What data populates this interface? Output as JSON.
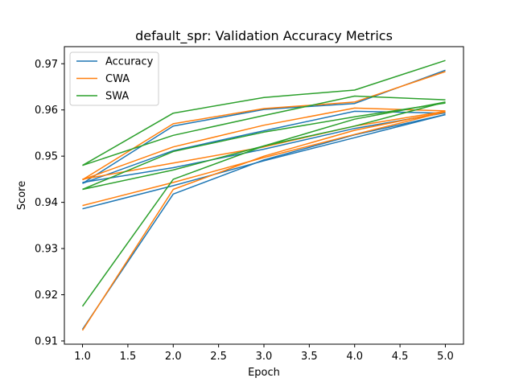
{
  "chart_data": {
    "type": "line",
    "title": "default_spr: Validation Accuracy Metrics",
    "xlabel": "Epoch",
    "ylabel": "Score",
    "xlim": [
      0.8,
      5.2
    ],
    "ylim": [
      0.9093,
      0.9737
    ],
    "x_ticks": [
      "1.0",
      "1.5",
      "2.0",
      "2.5",
      "3.0",
      "3.5",
      "4.0",
      "4.5",
      "5.0"
    ],
    "y_ticks": [
      "0.91",
      "0.92",
      "0.93",
      "0.94",
      "0.95",
      "0.96",
      "0.97"
    ],
    "grid": false,
    "legend_position": "top-left",
    "legend": [
      {
        "name": "Accuracy",
        "color": "#1f77b4"
      },
      {
        "name": "CWA",
        "color": "#ff7f0e"
      },
      {
        "name": "SWA",
        "color": "#2ca02c"
      }
    ],
    "x": [
      1,
      2,
      3,
      4,
      5
    ],
    "series": [
      {
        "group": "Accuracy",
        "color": "#1f77b4",
        "values": [
          0.9441,
          0.9565,
          0.9601,
          0.9614,
          0.9686
        ]
      },
      {
        "group": "Accuracy",
        "color": "#1f77b4",
        "values": [
          0.9125,
          0.9418,
          0.9492,
          0.9546,
          0.959
        ]
      },
      {
        "group": "Accuracy",
        "color": "#1f77b4",
        "values": [
          0.9386,
          0.9436,
          0.949,
          0.954,
          0.959
        ]
      },
      {
        "group": "Accuracy",
        "color": "#1f77b4",
        "values": [
          0.9441,
          0.9512,
          0.9555,
          0.9597,
          0.9593
        ]
      },
      {
        "group": "Accuracy",
        "color": "#1f77b4",
        "values": [
          0.9443,
          0.9475,
          0.9515,
          0.956,
          0.9594
        ]
      },
      {
        "group": "CWA",
        "color": "#ff7f0e",
        "values": [
          0.9449,
          0.957,
          0.9603,
          0.9617,
          0.9683
        ]
      },
      {
        "group": "CWA",
        "color": "#ff7f0e",
        "values": [
          0.9123,
          0.9428,
          0.95,
          0.9556,
          0.9596
        ]
      },
      {
        "group": "CWA",
        "color": "#ff7f0e",
        "values": [
          0.9393,
          0.9443,
          0.9497,
          0.9547,
          0.9596
        ]
      },
      {
        "group": "CWA",
        "color": "#ff7f0e",
        "values": [
          0.9449,
          0.952,
          0.9567,
          0.9604,
          0.9598
        ]
      },
      {
        "group": "CWA",
        "color": "#ff7f0e",
        "values": [
          0.945,
          0.9485,
          0.952,
          0.9565,
          0.9597
        ]
      },
      {
        "group": "SWA",
        "color": "#2ca02c",
        "values": [
          0.948,
          0.9593,
          0.9627,
          0.9643,
          0.9707
        ]
      },
      {
        "group": "SWA",
        "color": "#2ca02c",
        "values": [
          0.9175,
          0.945,
          0.9522,
          0.9565,
          0.9617
        ]
      },
      {
        "group": "SWA",
        "color": "#2ca02c",
        "values": [
          0.9428,
          0.947,
          0.9522,
          0.958,
          0.9617
        ]
      },
      {
        "group": "SWA",
        "color": "#2ca02c",
        "values": [
          0.948,
          0.9545,
          0.9588,
          0.963,
          0.9622
        ]
      },
      {
        "group": "SWA",
        "color": "#2ca02c",
        "values": [
          0.9428,
          0.951,
          0.9552,
          0.9585,
          0.9615
        ]
      }
    ]
  }
}
